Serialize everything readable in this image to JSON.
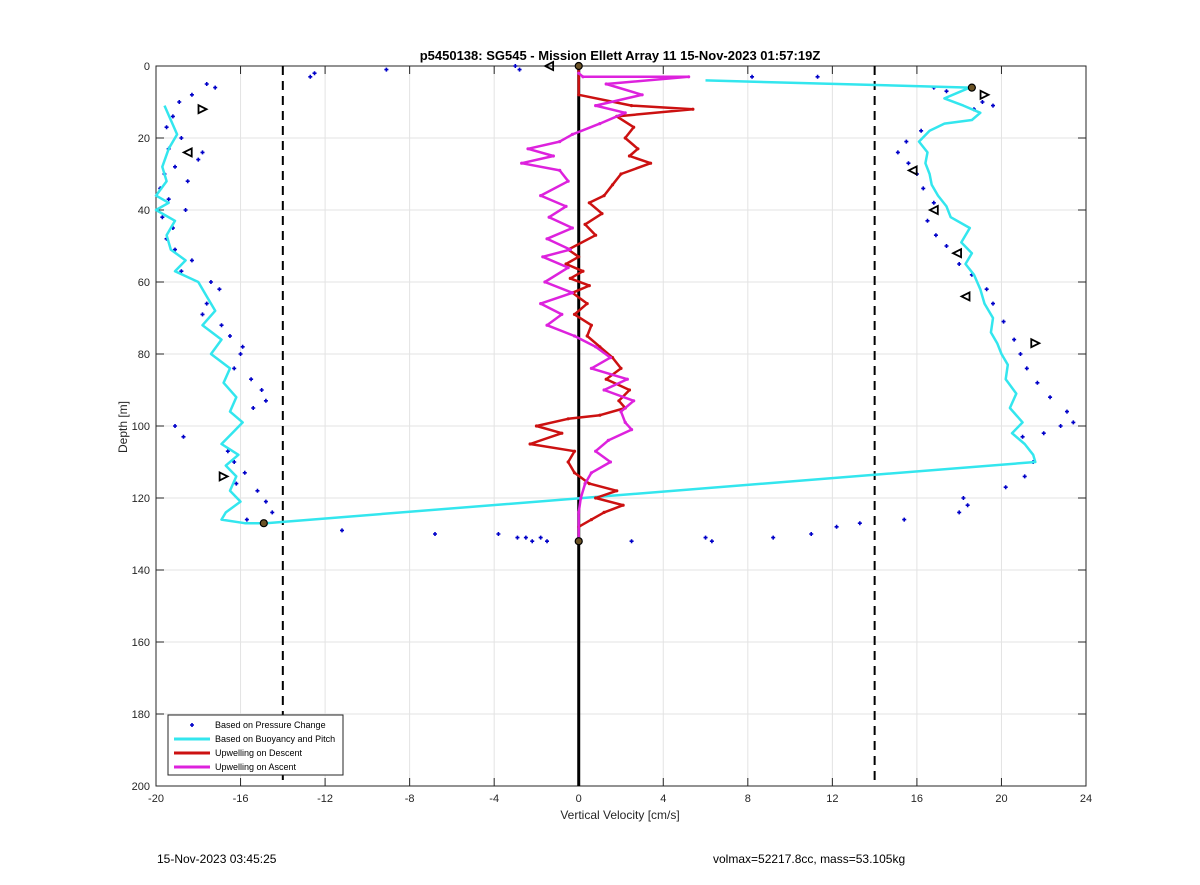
{
  "chart_data": {
    "type": "line",
    "title": "p5450138: SG545 - Mission Ellett Array 11 15-Nov-2023 01:57:19Z",
    "xlabel": "Vertical Velocity [cm/s]",
    "ylabel": "Depth [m]",
    "xlim": [
      -20,
      24
    ],
    "ylim": [
      200,
      0
    ],
    "y_reversed": true,
    "xticks": [
      -20,
      -16,
      -12,
      -8,
      -4,
      0,
      4,
      8,
      12,
      16,
      20,
      24
    ],
    "yticks": [
      0,
      20,
      40,
      60,
      80,
      100,
      120,
      140,
      160,
      180,
      200
    ],
    "grid": true,
    "legend_position": "bottom-left",
    "reference_lines": [
      {
        "x": -14,
        "style": "dashed",
        "color": "#000000"
      },
      {
        "x": 14,
        "style": "dashed",
        "color": "#000000"
      },
      {
        "x": 0,
        "style": "solid",
        "color": "#000000"
      }
    ],
    "series": [
      {
        "name": "Based on Pressure Change",
        "style": "points",
        "color": "#0000c8",
        "points": [
          [
            -12.5,
            2
          ],
          [
            -12.7,
            3
          ],
          [
            -9.1,
            1
          ],
          [
            -3.0,
            0
          ],
          [
            -2.8,
            1
          ],
          [
            -17.6,
            5
          ],
          [
            -17.2,
            6
          ],
          [
            -18.3,
            8
          ],
          [
            -18.9,
            10
          ],
          [
            -19.2,
            14
          ],
          [
            -19.5,
            17
          ],
          [
            -18.8,
            20
          ],
          [
            -19.4,
            23
          ],
          [
            -17.8,
            24
          ],
          [
            -18.0,
            26
          ],
          [
            -19.1,
            28
          ],
          [
            -19.6,
            30
          ],
          [
            -18.5,
            32
          ],
          [
            -19.8,
            34
          ],
          [
            -19.4,
            37
          ],
          [
            -18.6,
            40
          ],
          [
            -19.7,
            42
          ],
          [
            -19.2,
            45
          ],
          [
            -19.5,
            48
          ],
          [
            -19.1,
            51
          ],
          [
            -18.3,
            54
          ],
          [
            -18.8,
            57
          ],
          [
            -17.4,
            60
          ],
          [
            -17.0,
            62
          ],
          [
            -17.6,
            66
          ],
          [
            -17.8,
            69
          ],
          [
            -16.9,
            72
          ],
          [
            -16.5,
            75
          ],
          [
            -15.9,
            78
          ],
          [
            -16.0,
            80
          ],
          [
            -16.3,
            84
          ],
          [
            -15.5,
            87
          ],
          [
            -15.0,
            90
          ],
          [
            -14.8,
            93
          ],
          [
            -15.4,
            95
          ],
          [
            -19.1,
            100
          ],
          [
            -18.7,
            103
          ],
          [
            -16.6,
            107
          ],
          [
            -16.3,
            110
          ],
          [
            -15.8,
            113
          ],
          [
            -16.2,
            116
          ],
          [
            -15.2,
            118
          ],
          [
            -14.8,
            121
          ],
          [
            -14.5,
            124
          ],
          [
            -15.7,
            126
          ],
          [
            -11.2,
            129
          ],
          [
            -6.8,
            130
          ],
          [
            -3.8,
            130
          ],
          [
            -2.9,
            131
          ],
          [
            -2.5,
            131
          ],
          [
            -2.2,
            132
          ],
          [
            -1.8,
            131
          ],
          [
            -1.5,
            132
          ],
          [
            2.5,
            132
          ],
          [
            6.0,
            131
          ],
          [
            6.3,
            132
          ],
          [
            9.2,
            131
          ],
          [
            11.0,
            130
          ],
          [
            12.2,
            128
          ],
          [
            13.3,
            127
          ],
          [
            15.4,
            126
          ],
          [
            18.0,
            124
          ],
          [
            18.2,
            120
          ],
          [
            18.4,
            122
          ],
          [
            20.2,
            117
          ],
          [
            21.1,
            114
          ],
          [
            21.5,
            110
          ],
          [
            21.0,
            103
          ],
          [
            22.0,
            102
          ],
          [
            22.8,
            100
          ],
          [
            23.1,
            96
          ],
          [
            23.4,
            99
          ],
          [
            22.3,
            92
          ],
          [
            21.7,
            88
          ],
          [
            21.2,
            84
          ],
          [
            20.9,
            80
          ],
          [
            20.6,
            76
          ],
          [
            20.1,
            71
          ],
          [
            19.6,
            66
          ],
          [
            19.3,
            62
          ],
          [
            18.6,
            58
          ],
          [
            18.0,
            55
          ],
          [
            17.4,
            50
          ],
          [
            16.9,
            47
          ],
          [
            16.5,
            43
          ],
          [
            16.8,
            38
          ],
          [
            16.3,
            34
          ],
          [
            16.0,
            30
          ],
          [
            15.6,
            27
          ],
          [
            15.1,
            24
          ],
          [
            15.5,
            21
          ],
          [
            16.2,
            18
          ],
          [
            18.7,
            12
          ],
          [
            19.1,
            10
          ],
          [
            19.6,
            11
          ],
          [
            17.4,
            7
          ],
          [
            16.8,
            6
          ],
          [
            11.3,
            3
          ],
          [
            8.2,
            3
          ]
        ]
      },
      {
        "name": "Based on Buoyancy and Pitch",
        "style": "line",
        "color": "#33e6ee",
        "points": [
          [
            -19.6,
            11
          ],
          [
            -19.3,
            15
          ],
          [
            -19.0,
            19
          ],
          [
            -19.4,
            23
          ],
          [
            -19.7,
            28
          ],
          [
            -19.5,
            32
          ],
          [
            -20.0,
            36
          ],
          [
            -19.4,
            38
          ],
          [
            -20.0,
            40
          ],
          [
            -19.1,
            43
          ],
          [
            -19.5,
            47
          ],
          [
            -19.3,
            51
          ],
          [
            -18.6,
            54
          ],
          [
            -19.1,
            57
          ],
          [
            -18.0,
            60
          ],
          [
            -17.6,
            64
          ],
          [
            -17.2,
            68
          ],
          [
            -17.8,
            72
          ],
          [
            -16.9,
            76
          ],
          [
            -17.4,
            80
          ],
          [
            -16.5,
            84
          ],
          [
            -16.8,
            88
          ],
          [
            -16.2,
            92
          ],
          [
            -16.5,
            96
          ],
          [
            -15.9,
            99
          ],
          [
            -16.4,
            102
          ],
          [
            -16.9,
            105
          ],
          [
            -16.1,
            108
          ],
          [
            -16.7,
            111
          ],
          [
            -16.2,
            114
          ],
          [
            -16.5,
            118
          ],
          [
            -16.0,
            121
          ],
          [
            -16.7,
            124
          ],
          [
            -16.9,
            126
          ],
          [
            -15.8,
            127
          ],
          [
            -14.8,
            127
          ],
          [
            21.6,
            110
          ],
          [
            21.5,
            108
          ],
          [
            21.1,
            105
          ],
          [
            20.5,
            102
          ],
          [
            21.0,
            99
          ],
          [
            20.4,
            95
          ],
          [
            20.7,
            91
          ],
          [
            20.2,
            87
          ],
          [
            20.3,
            83
          ],
          [
            20.0,
            80
          ],
          [
            19.8,
            77
          ],
          [
            19.5,
            74
          ],
          [
            19.6,
            70
          ],
          [
            19.2,
            66
          ],
          [
            19.0,
            62
          ],
          [
            18.7,
            58
          ],
          [
            18.3,
            55
          ],
          [
            18.6,
            52
          ],
          [
            18.1,
            49
          ],
          [
            18.5,
            45
          ],
          [
            17.6,
            42
          ],
          [
            17.4,
            39
          ],
          [
            17.0,
            36
          ],
          [
            16.7,
            33
          ],
          [
            16.6,
            30
          ],
          [
            16.4,
            27
          ],
          [
            16.5,
            24
          ],
          [
            16.1,
            21
          ],
          [
            16.6,
            18
          ],
          [
            17.3,
            16
          ],
          [
            18.6,
            15
          ],
          [
            19.0,
            13
          ],
          [
            18.2,
            11
          ],
          [
            17.3,
            9
          ],
          [
            18.1,
            7
          ],
          [
            18.5,
            6
          ],
          [
            6.0,
            4
          ]
        ]
      },
      {
        "name": "Upwelling on Descent",
        "style": "line",
        "color": "#cc1111",
        "points": [
          [
            0.0,
            0
          ],
          [
            0.0,
            8
          ],
          [
            2.5,
            11
          ],
          [
            5.4,
            12
          ],
          [
            1.8,
            14
          ],
          [
            2.6,
            17
          ],
          [
            2.2,
            20
          ],
          [
            2.8,
            23
          ],
          [
            2.4,
            25
          ],
          [
            3.4,
            27
          ],
          [
            2.0,
            30
          ],
          [
            1.6,
            33
          ],
          [
            1.2,
            36
          ],
          [
            0.5,
            38
          ],
          [
            1.1,
            41
          ],
          [
            0.3,
            44
          ],
          [
            0.8,
            47
          ],
          [
            -0.5,
            51
          ],
          [
            0.0,
            53
          ],
          [
            -0.6,
            55
          ],
          [
            0.2,
            57
          ],
          [
            -0.4,
            59
          ],
          [
            0.5,
            61
          ],
          [
            -0.3,
            63
          ],
          [
            0.4,
            66
          ],
          [
            -0.2,
            69
          ],
          [
            0.6,
            72
          ],
          [
            0.4,
            75
          ],
          [
            1.0,
            78
          ],
          [
            1.6,
            81
          ],
          [
            2.0,
            84
          ],
          [
            1.3,
            87
          ],
          [
            2.4,
            90
          ],
          [
            1.9,
            93
          ],
          [
            2.2,
            95
          ],
          [
            1.0,
            97
          ],
          [
            -0.5,
            98
          ],
          [
            -2.0,
            100
          ],
          [
            -0.8,
            102
          ],
          [
            -2.3,
            105
          ],
          [
            -0.2,
            107
          ],
          [
            -0.5,
            110
          ],
          [
            -0.2,
            113
          ],
          [
            0.5,
            116
          ],
          [
            1.8,
            118
          ],
          [
            0.8,
            120
          ],
          [
            2.1,
            122
          ],
          [
            1.2,
            124
          ],
          [
            0.6,
            126
          ],
          [
            0.0,
            128
          ],
          [
            0.0,
            132
          ]
        ]
      },
      {
        "name": "Upwelling on Ascent",
        "style": "line",
        "color": "#dd22dd",
        "points": [
          [
            0.0,
            2
          ],
          [
            0.2,
            3
          ],
          [
            5.2,
            3
          ],
          [
            1.3,
            5
          ],
          [
            3.0,
            8
          ],
          [
            0.8,
            11
          ],
          [
            2.2,
            13
          ],
          [
            1.0,
            16
          ],
          [
            -0.3,
            19
          ],
          [
            -0.9,
            21
          ],
          [
            -2.4,
            23
          ],
          [
            -1.2,
            25
          ],
          [
            -2.7,
            27
          ],
          [
            -0.9,
            29
          ],
          [
            -0.5,
            32
          ],
          [
            -1.8,
            36
          ],
          [
            -0.6,
            39
          ],
          [
            -1.4,
            42
          ],
          [
            -0.3,
            45
          ],
          [
            -1.5,
            48
          ],
          [
            -0.4,
            51
          ],
          [
            -1.7,
            53
          ],
          [
            -0.5,
            56
          ],
          [
            -1.6,
            60
          ],
          [
            -0.3,
            63
          ],
          [
            -1.8,
            66
          ],
          [
            -0.8,
            69
          ],
          [
            -1.5,
            72
          ],
          [
            -0.2,
            75
          ],
          [
            0.8,
            78
          ],
          [
            1.5,
            81
          ],
          [
            0.6,
            84
          ],
          [
            2.3,
            87
          ],
          [
            1.2,
            90
          ],
          [
            2.6,
            93
          ],
          [
            2.0,
            96
          ],
          [
            2.2,
            99
          ],
          [
            2.5,
            101
          ],
          [
            1.4,
            104
          ],
          [
            0.8,
            107
          ],
          [
            1.5,
            110
          ],
          [
            0.6,
            113
          ],
          [
            0.3,
            116
          ],
          [
            0.1,
            120
          ],
          [
            0.0,
            124
          ],
          [
            0.0,
            132
          ]
        ]
      }
    ],
    "markers": [
      {
        "shape": "triangle-left",
        "color": "#000000",
        "points": [
          [
            -1.4,
            0
          ],
          [
            -18.5,
            24
          ],
          [
            15.8,
            29
          ],
          [
            16.8,
            40
          ],
          [
            17.9,
            52
          ],
          [
            18.3,
            64
          ]
        ]
      },
      {
        "shape": "triangle-right",
        "color": "#000000",
        "points": [
          [
            -17.8,
            12
          ],
          [
            19.2,
            8
          ],
          [
            21.6,
            77
          ],
          [
            -16.8,
            114
          ]
        ]
      },
      {
        "shape": "filled-circle",
        "color": "#6b5326",
        "points": [
          [
            0.0,
            0
          ],
          [
            18.6,
            6
          ],
          [
            -14.9,
            127
          ],
          [
            0.0,
            132
          ]
        ]
      }
    ]
  },
  "footer": {
    "timestamp": "15-Nov-2023 03:45:25",
    "info": "volmax=52217.8cc, mass=53.105kg"
  }
}
